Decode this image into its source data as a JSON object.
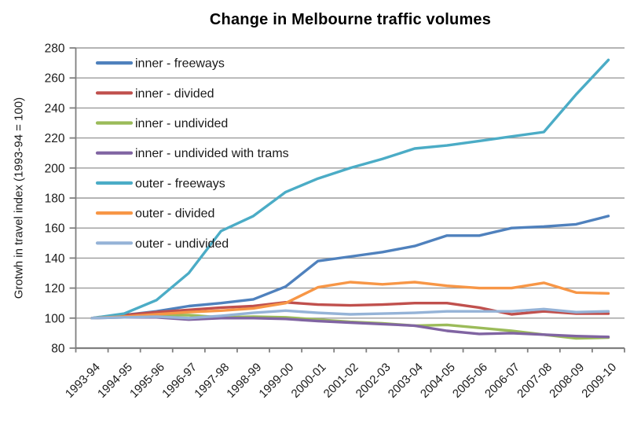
{
  "title": "Change in Melbourne traffic volumes",
  "colors": {
    "background": "#ffffff",
    "grid": "#9b9b9b",
    "axis": "#7f7f7f",
    "text": "#1a1a1a"
  },
  "chart_data": {
    "type": "line",
    "title": "Change in Melbourne traffic volumes",
    "xlabel": "",
    "ylabel": "Grotwh in travel index (1993-94 = 100)",
    "ylim": [
      80,
      280
    ],
    "ytick_step": 20,
    "y_ticks": [
      80,
      100,
      120,
      140,
      160,
      180,
      200,
      220,
      240,
      260,
      280
    ],
    "grid": true,
    "legend_position": "inside-top-left",
    "categories": [
      "1993-94",
      "1994-95",
      "1995-96",
      "1996-97",
      "1997-98",
      "1998-99",
      "1999-00",
      "2000-01",
      "2001-02",
      "2002-03",
      "2003-04",
      "2004-05",
      "2005-06",
      "2006-07",
      "2007-08",
      "2008-09",
      "2009-10"
    ],
    "series": [
      {
        "name": "inner - freeways",
        "color": "#4F81BD",
        "values": [
          100,
          102,
          104.5,
          108,
          110,
          112.5,
          121,
          138,
          141,
          144,
          148,
          155,
          155,
          160,
          161,
          162.5,
          168
        ]
      },
      {
        "name": "inner - divided",
        "color": "#C0504D",
        "values": [
          100,
          102,
          104,
          105.5,
          107,
          108,
          110.5,
          109,
          108.5,
          109,
          110,
          110,
          107,
          102.5,
          104.5,
          103,
          103
        ]
      },
      {
        "name": "inner - undivided",
        "color": "#9BBB59",
        "values": [
          100,
          101,
          102,
          102,
          100.5,
          101,
          100.5,
          99,
          97.5,
          96.5,
          95,
          95.5,
          93.5,
          91.5,
          89,
          86.5,
          87
        ]
      },
      {
        "name": "inner - undivided with trams",
        "color": "#8064A2",
        "values": [
          100,
          100.5,
          100.5,
          99,
          100,
          100,
          99.5,
          98,
          97,
          96,
          95,
          91.5,
          89.5,
          90,
          89,
          88,
          87.5
        ]
      },
      {
        "name": "outer - freeways",
        "color": "#4BACC6",
        "values": [
          100,
          103,
          112,
          130,
          158,
          168,
          184,
          193,
          200,
          206,
          213,
          215,
          218,
          221,
          224,
          249,
          272
        ]
      },
      {
        "name": "outer - divided",
        "color": "#F79646",
        "values": [
          100,
          101,
          102.5,
          104,
          105,
          106.5,
          110,
          120.5,
          124,
          122.5,
          124,
          121.5,
          120,
          120,
          123.5,
          117,
          116.5
        ]
      },
      {
        "name": "outer - undivided",
        "color": "#95B3D7",
        "values": [
          100,
          100.5,
          101,
          100,
          101.5,
          103.5,
          105,
          103.5,
          102.5,
          103,
          103.5,
          104.5,
          104.5,
          104.5,
          106,
          104,
          104.5
        ]
      }
    ]
  }
}
